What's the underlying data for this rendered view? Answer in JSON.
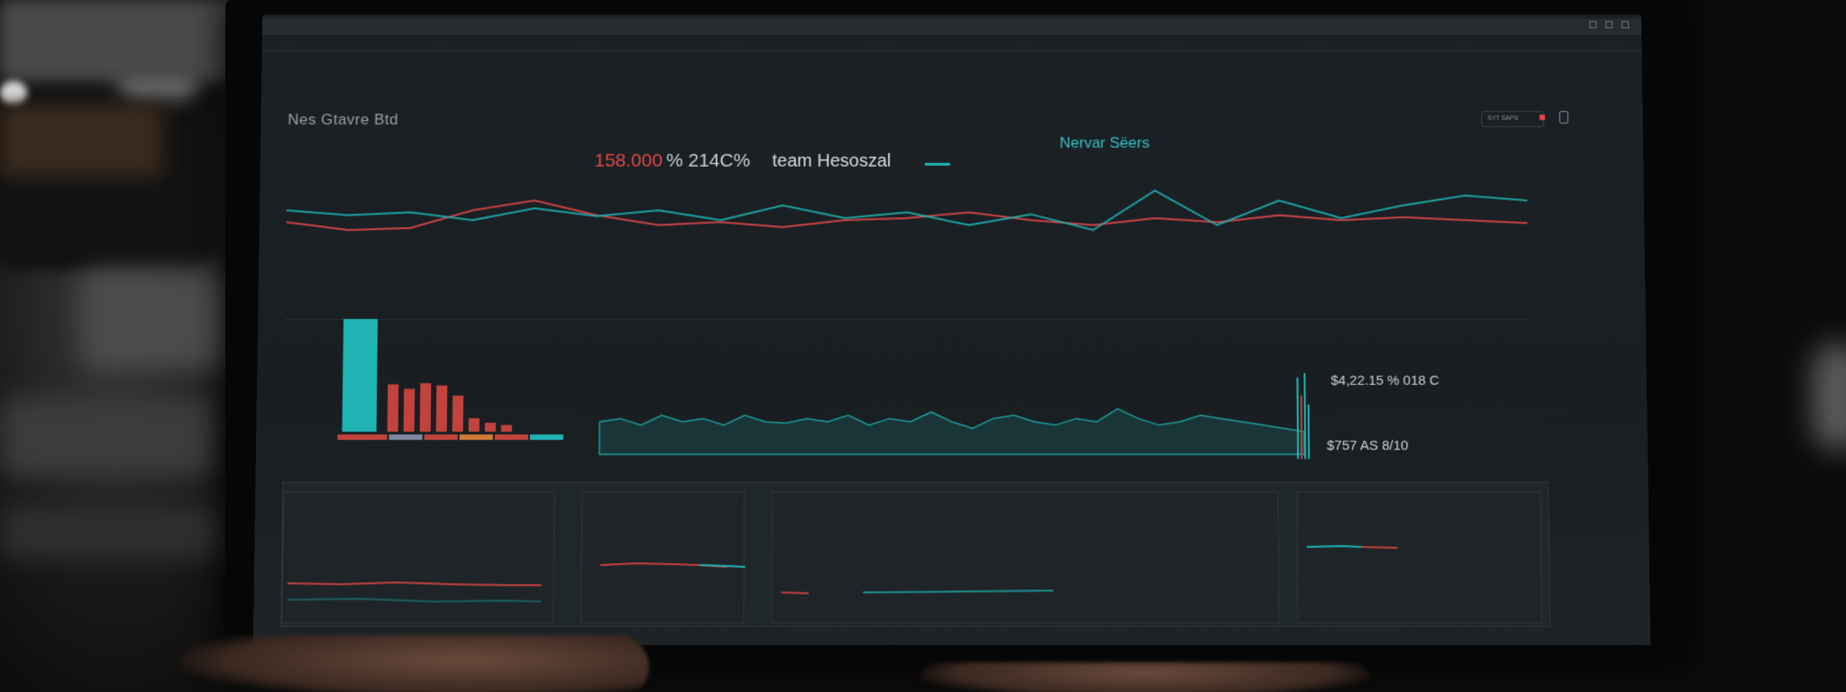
{
  "dashboard": {
    "title": "Nes Gtavre Btd",
    "kpi_value_red": "158.000",
    "kpi_value": "% 214C%",
    "kpi_label": "team Hesoszal",
    "series_title": "Nervar Sëers",
    "legend_text": "",
    "toolbar_button": "SYT SAPS",
    "axis_right": [
      "",
      "",
      "",
      ""
    ],
    "panel_right_value_top": "$4,22.15 % 018 C",
    "panel_right_value_bottom": "$757 AS 8/10"
  },
  "chart_data": [
    {
      "type": "line",
      "title": "Nervar Sëers",
      "series": [
        {
          "color": "#e0474a",
          "values": [
            0.52,
            0.6,
            0.58,
            0.4,
            0.3,
            0.45,
            0.55,
            0.52,
            0.57,
            0.5,
            0.48,
            0.42,
            0.5,
            0.55,
            0.48,
            0.52,
            0.45,
            0.5,
            0.47,
            0.5,
            0.53
          ]
        },
        {
          "color": "#1fb3b3",
          "values": [
            0.4,
            0.45,
            0.42,
            0.5,
            0.38,
            0.46,
            0.4,
            0.5,
            0.35,
            0.48,
            0.42,
            0.55,
            0.44,
            0.6,
            0.2,
            0.55,
            0.3,
            0.48,
            0.35,
            0.25,
            0.3
          ]
        }
      ]
    },
    {
      "type": "bar",
      "series": [
        {
          "color": "#1fb3b3",
          "values": [
            100
          ]
        },
        {
          "color": "#c2423d",
          "values": [
            42,
            38,
            43,
            41,
            32,
            12,
            8,
            6
          ]
        }
      ]
    },
    {
      "type": "area",
      "series": [
        {
          "color": "#1fb3b3",
          "values": [
            0.5,
            0.55,
            0.45,
            0.6,
            0.5,
            0.55,
            0.45,
            0.6,
            0.5,
            0.48,
            0.55,
            0.5,
            0.6,
            0.45,
            0.55,
            0.5,
            0.65,
            0.5,
            0.4,
            0.55,
            0.6,
            0.5,
            0.45,
            0.55,
            0.5,
            0.7,
            0.55,
            0.45,
            0.5,
            0.6,
            0.55,
            0.5,
            0.45,
            0.4,
            0.35
          ]
        }
      ]
    }
  ],
  "colors": {
    "accent_teal": "#1fb3b3",
    "accent_red": "#e0474a"
  }
}
